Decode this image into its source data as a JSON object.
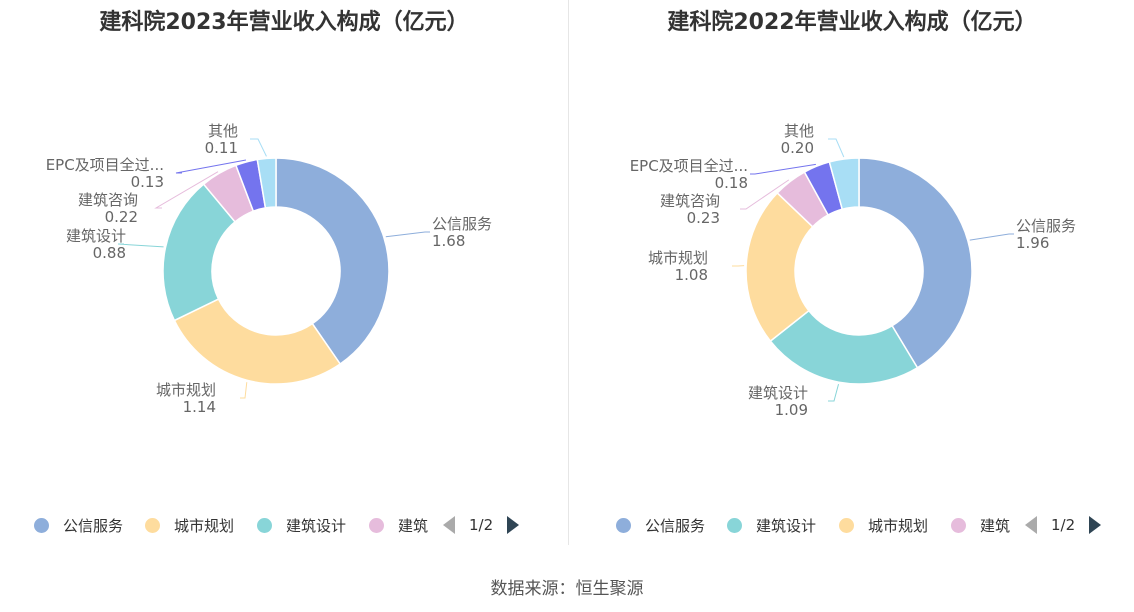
{
  "source_text": "数据来源：恒生聚源",
  "chart_data": [
    {
      "type": "pie",
      "title": "建科院2023年营业收入构成（亿元）",
      "slices": [
        {
          "label": "公信服务",
          "value": 1.68,
          "display": "1.68",
          "color": "#8eaedb"
        },
        {
          "label": "城市规划",
          "value": 1.14,
          "display": "1.14",
          "color": "#fedc9e"
        },
        {
          "label": "建筑设计",
          "value": 0.88,
          "display": "0.88",
          "color": "#88d5d8"
        },
        {
          "label": "建筑咨询",
          "value": 0.22,
          "display": "0.22",
          "color": "#e6bcdc"
        },
        {
          "label": "EPC及项目全过...",
          "value": 0.13,
          "display": "0.13",
          "color": "#7474ee"
        },
        {
          "label": "其他",
          "value": 0.11,
          "display": "0.11",
          "color": "#a8def5"
        }
      ],
      "legend": {
        "items": [
          "公信服务",
          "城市规划",
          "建筑设计",
          "建筑"
        ],
        "page": "1/2"
      }
    },
    {
      "type": "pie",
      "title": "建科院2022年营业收入构成（亿元）",
      "slices": [
        {
          "label": "公信服务",
          "value": 1.96,
          "display": "1.96",
          "color": "#8eaedb"
        },
        {
          "label": "建筑设计",
          "value": 1.09,
          "display": "1.09",
          "color": "#88d5d8"
        },
        {
          "label": "城市规划",
          "value": 1.08,
          "display": "1.08",
          "color": "#fedc9e"
        },
        {
          "label": "建筑咨询",
          "value": 0.23,
          "display": "0.23",
          "color": "#e6bcdc"
        },
        {
          "label": "EPC及项目全过...",
          "value": 0.18,
          "display": "0.18",
          "color": "#7474ee"
        },
        {
          "label": "其他",
          "value": 0.2,
          "display": "0.20",
          "color": "#a8def5"
        }
      ],
      "legend": {
        "items": [
          "公信服务",
          "建筑设计",
          "城市规划",
          "建筑"
        ],
        "page": "1/2"
      }
    }
  ]
}
